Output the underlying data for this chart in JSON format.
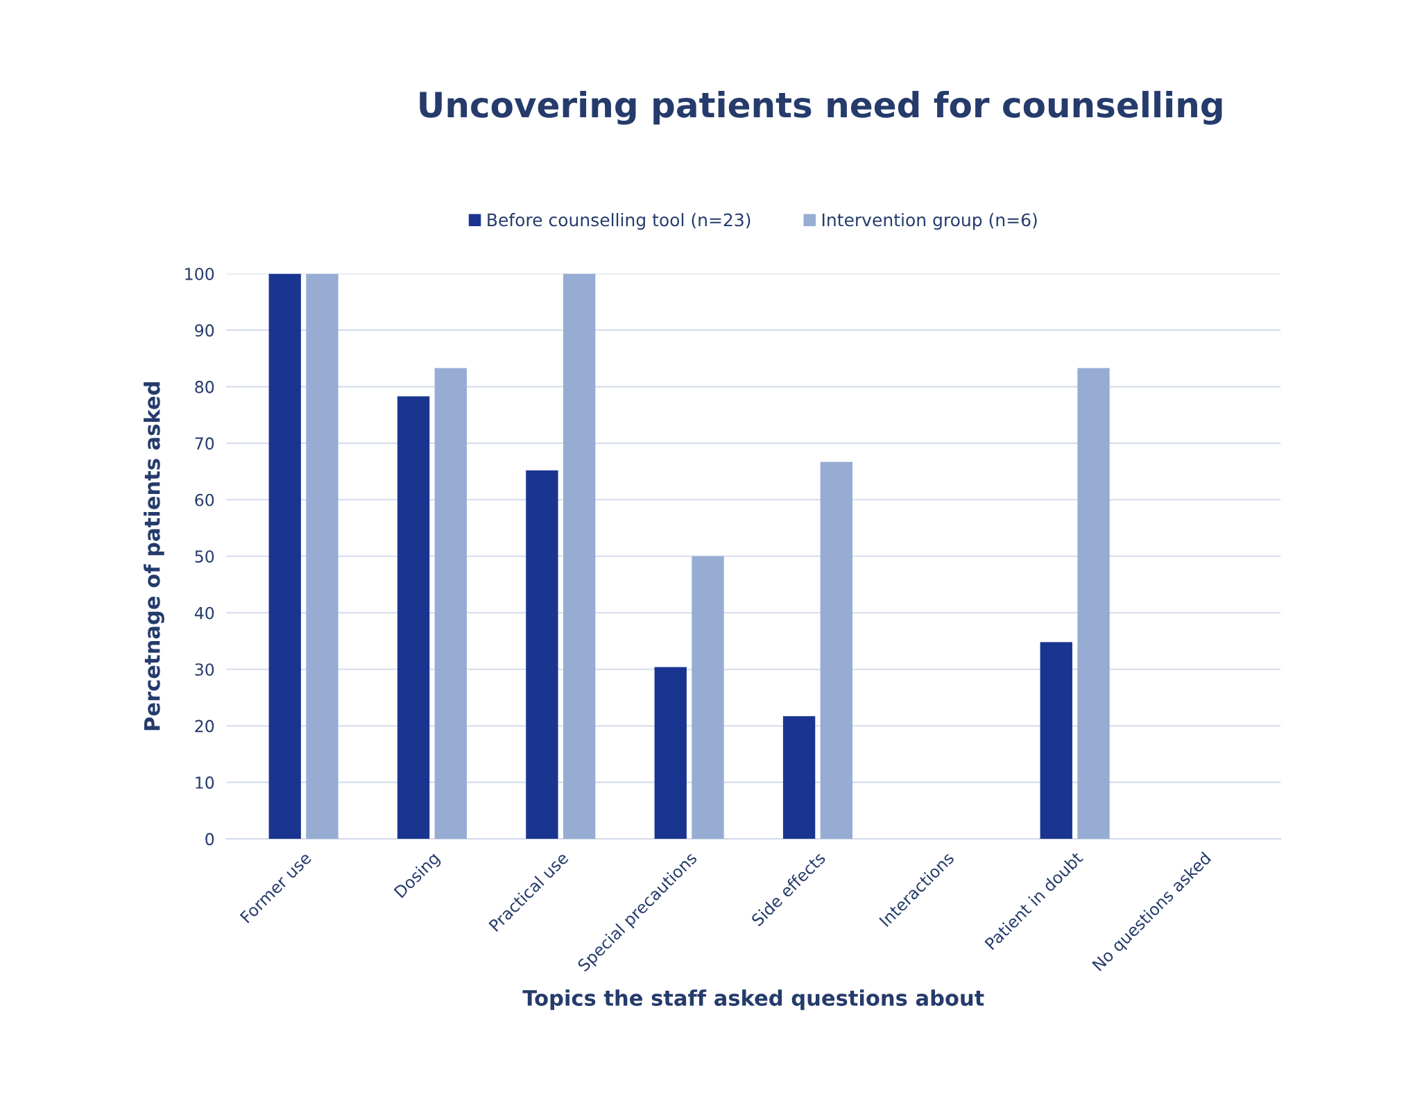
{
  "chart_data": {
    "type": "bar",
    "title": "Uncovering patients need for counselling",
    "xlabel": "Topics the staff asked questions about",
    "ylabel": "Percetnage of patients asked",
    "categories": [
      "Former use",
      "Dosing",
      "Practical use",
      "Special precautions",
      "Side effects",
      "Interactions",
      "Patient in doubt",
      "No questions asked"
    ],
    "series": [
      {
        "name": "Before counselling tool (n=23)",
        "color": "#1a3590",
        "values": [
          100,
          78.3,
          65.2,
          30.4,
          21.7,
          0,
          34.8,
          0
        ]
      },
      {
        "name": "Intervention group (n=6)",
        "color": "#96acd2",
        "values": [
          100,
          83.3,
          100,
          50,
          66.7,
          0,
          83.3,
          0
        ]
      }
    ],
    "ylim": [
      0,
      100
    ],
    "yticks": [
      0,
      10,
      20,
      30,
      40,
      50,
      60,
      70,
      80,
      90,
      100
    ],
    "grid": "y",
    "legend": "top"
  }
}
